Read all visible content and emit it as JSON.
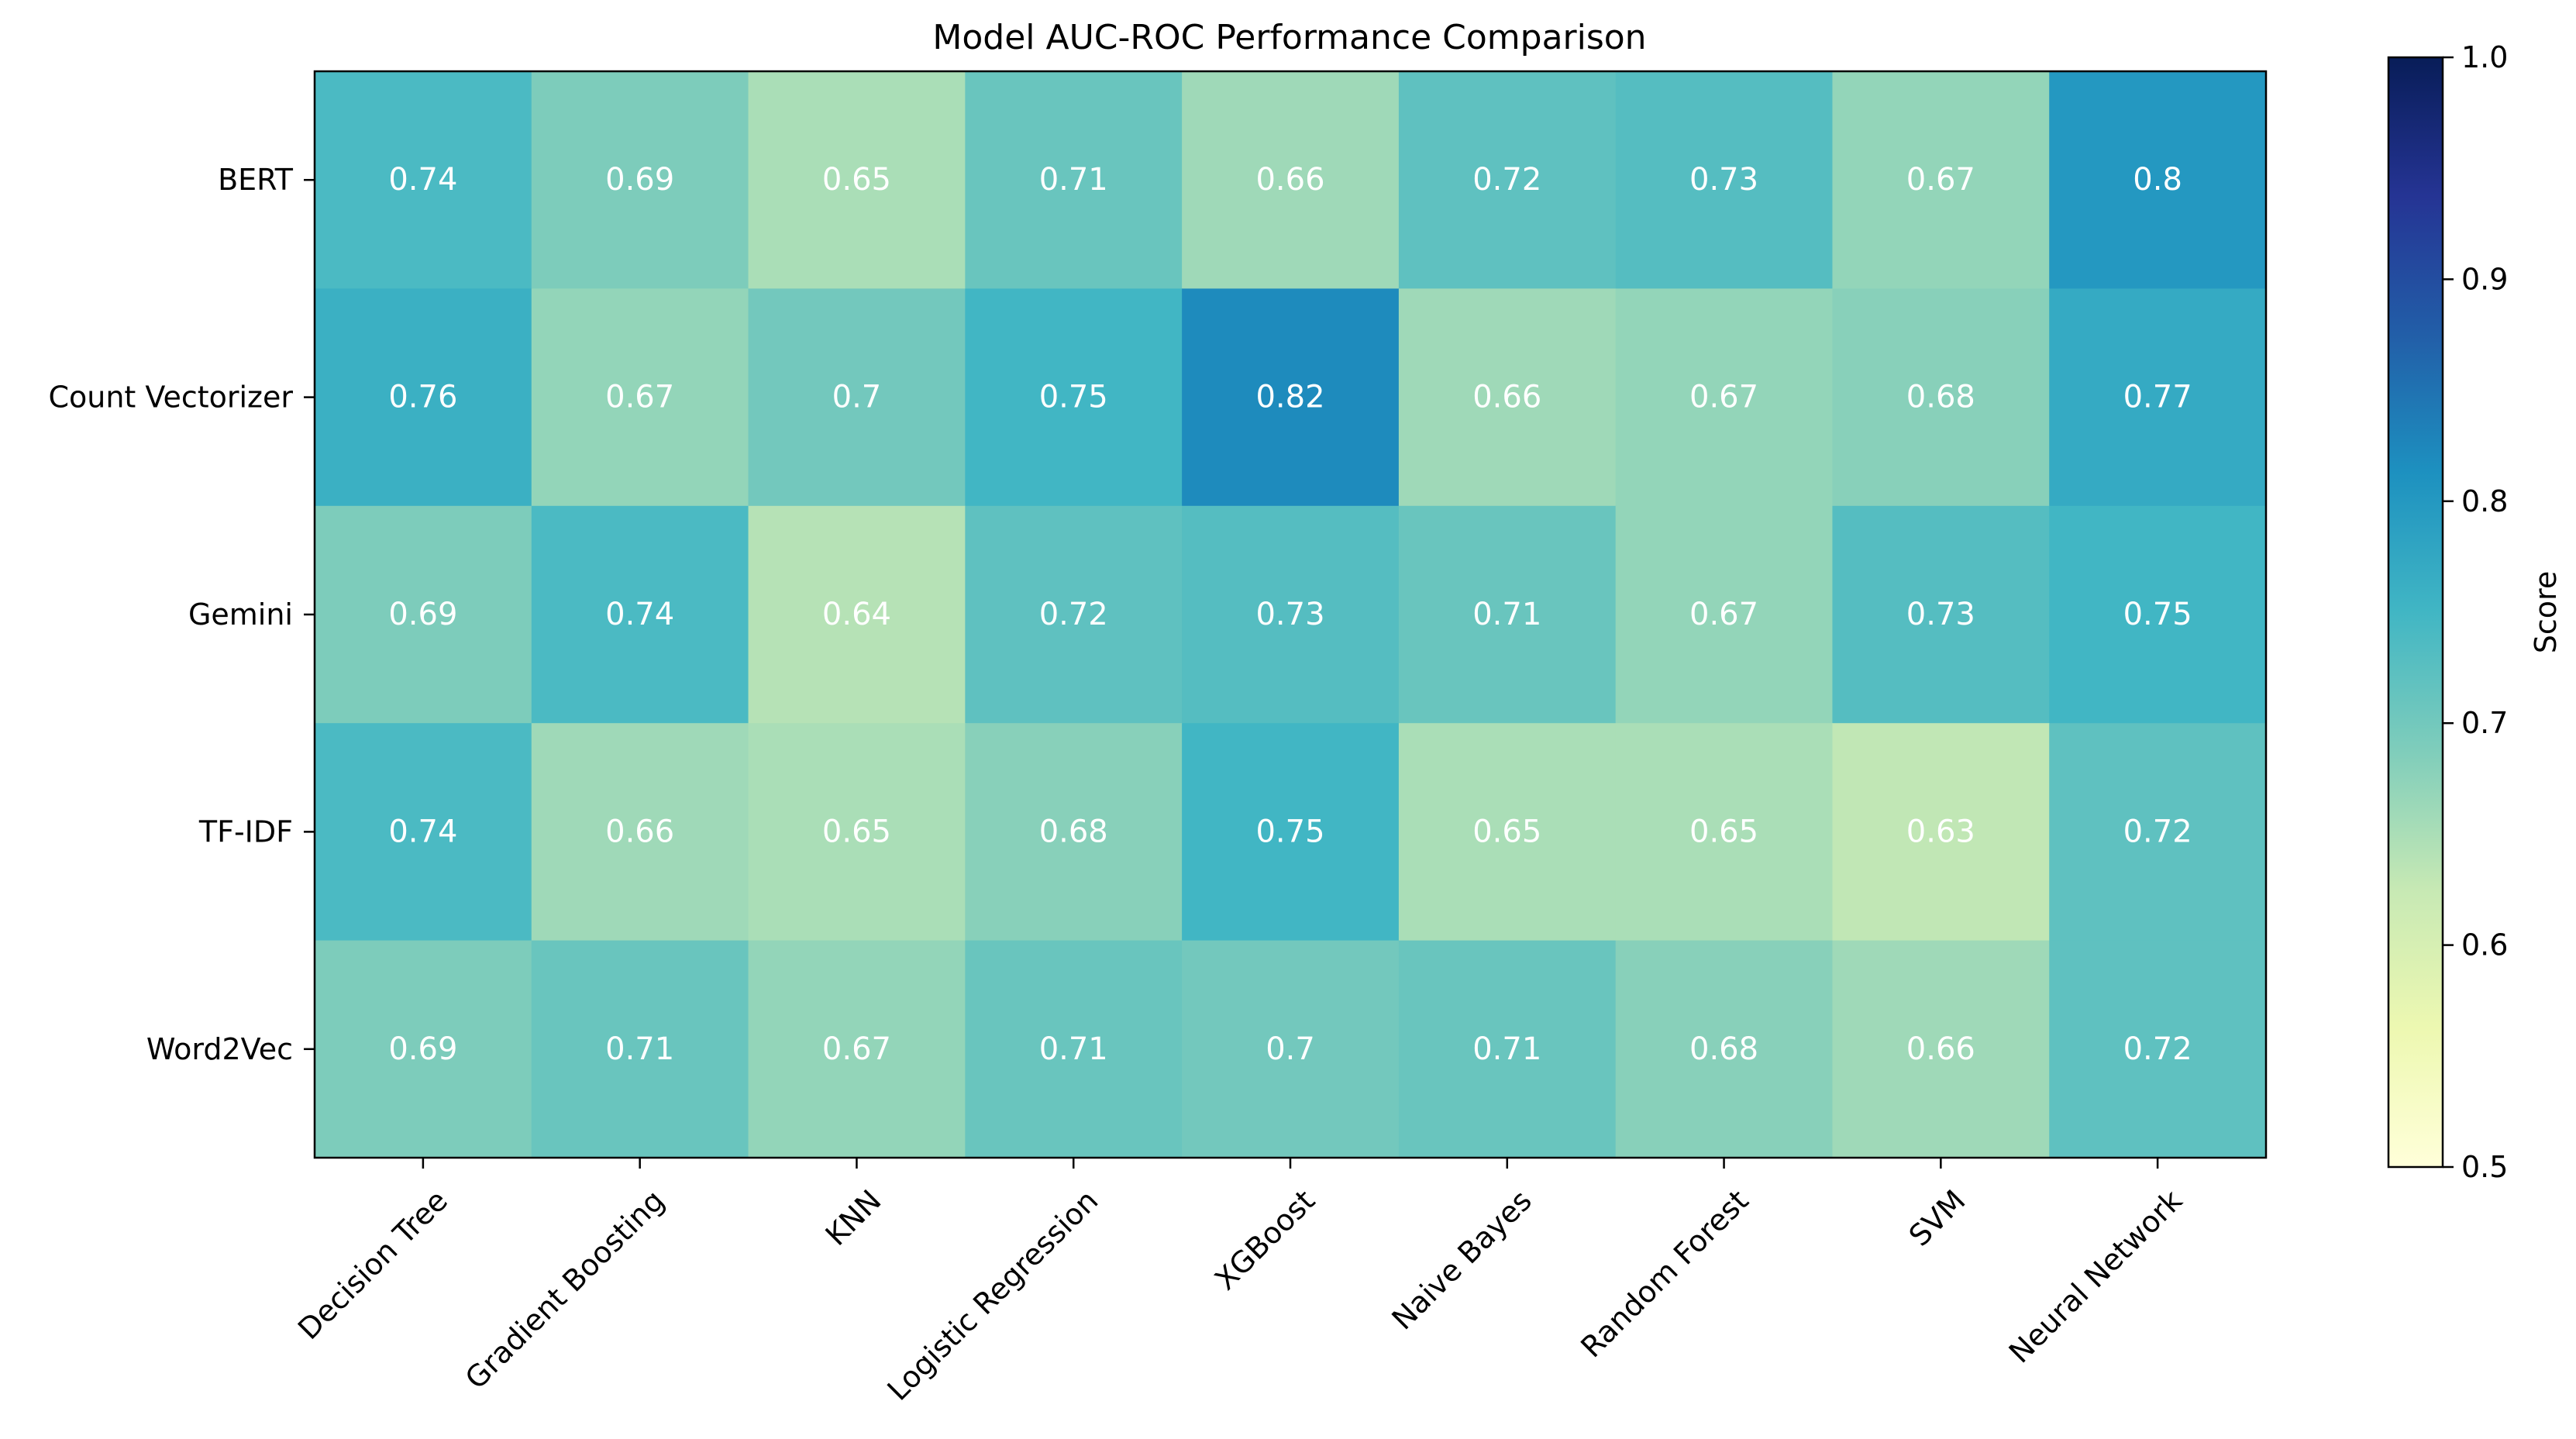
{
  "chart_data": {
    "type": "heatmap",
    "title": "Model AUC-ROC Performance Comparison",
    "xlabel": "",
    "ylabel": "",
    "rows": [
      "BERT",
      "Count Vectorizer",
      "Gemini",
      "TF-IDF",
      "Word2Vec"
    ],
    "columns": [
      "Decision Tree",
      "Gradient Boosting",
      "KNN",
      "Logistic Regression",
      "XGBoost",
      "Naive Bayes",
      "Random Forest",
      "SVM",
      "Neural Network"
    ],
    "values": [
      [
        0.74,
        0.69,
        0.65,
        0.71,
        0.66,
        0.72,
        0.73,
        0.67,
        0.8
      ],
      [
        0.76,
        0.67,
        0.7,
        0.75,
        0.82,
        0.66,
        0.67,
        0.68,
        0.77
      ],
      [
        0.69,
        0.74,
        0.64,
        0.72,
        0.73,
        0.71,
        0.67,
        0.73,
        0.75
      ],
      [
        0.74,
        0.66,
        0.65,
        0.68,
        0.75,
        0.65,
        0.65,
        0.63,
        0.72
      ],
      [
        0.69,
        0.71,
        0.67,
        0.71,
        0.7,
        0.71,
        0.68,
        0.66,
        0.72
      ]
    ],
    "value_labels": [
      [
        "0.74",
        "0.69",
        "0.65",
        "0.71",
        "0.66",
        "0.72",
        "0.73",
        "0.67",
        "0.8"
      ],
      [
        "0.76",
        "0.67",
        "0.7",
        "0.75",
        "0.82",
        "0.66",
        "0.67",
        "0.68",
        "0.77"
      ],
      [
        "0.69",
        "0.74",
        "0.64",
        "0.72",
        "0.73",
        "0.71",
        "0.67",
        "0.73",
        "0.75"
      ],
      [
        "0.74",
        "0.66",
        "0.65",
        "0.68",
        "0.75",
        "0.65",
        "0.65",
        "0.63",
        "0.72"
      ],
      [
        "0.69",
        "0.71",
        "0.67",
        "0.71",
        "0.7",
        "0.71",
        "0.68",
        "0.66",
        "0.72"
      ]
    ],
    "colormap": "YlGnBu",
    "colorbar": {
      "label": "Score",
      "range": [
        0.5,
        1.0
      ],
      "ticks": [
        0.5,
        0.6,
        0.7,
        0.8,
        0.9,
        1.0
      ],
      "tick_labels": [
        "0.5",
        "0.6",
        "0.7",
        "0.8",
        "0.9",
        "1.0"
      ]
    },
    "legend": "right",
    "grid": false,
    "colors": {
      "cell_text": "#ffffff",
      "frame": "#000000"
    }
  }
}
